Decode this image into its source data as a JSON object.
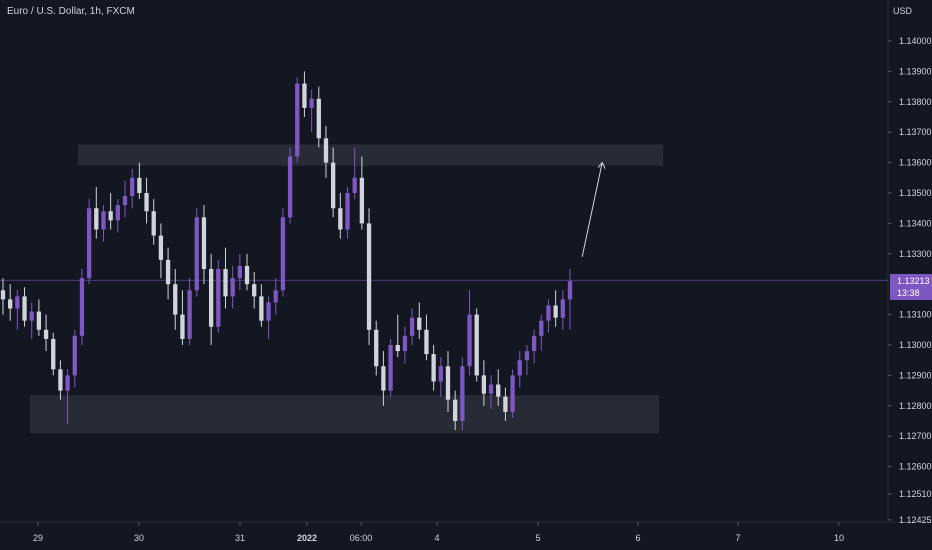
{
  "chart_data": {
    "type": "candlestick",
    "title": "Euro / U.S. Dollar, 1h, FXCM",
    "unit": "USD",
    "y_axis": {
      "ticks": [
        "1.14000",
        "1.13900",
        "1.13800",
        "1.13700",
        "1.13600",
        "1.13500",
        "1.13400",
        "1.13300",
        "1.13100",
        "1.13000",
        "1.12900",
        "1.12800",
        "1.12700",
        "1.12600",
        "1.12510",
        "1.12425"
      ],
      "ylim": [
        1.124,
        1.1415
      ]
    },
    "x_axis": {
      "ticks": [
        {
          "label": "29",
          "bold": false
        },
        {
          "label": "30",
          "bold": false
        },
        {
          "label": "31",
          "bold": false
        },
        {
          "label": "2022",
          "bold": true
        },
        {
          "label": "06:00",
          "bold": false
        },
        {
          "label": "4",
          "bold": false
        },
        {
          "label": "5",
          "bold": false
        },
        {
          "label": "6",
          "bold": false
        },
        {
          "label": "7",
          "bold": false
        },
        {
          "label": "10",
          "bold": false
        }
      ]
    },
    "current_price": {
      "value": "1.13213",
      "countdown": "13:38"
    },
    "colors": {
      "up": "#7e57c2",
      "down": "#d1d4dc",
      "background": "#131722",
      "zone": "#2a2e39",
      "price_line": "#7e57c2"
    },
    "zones": [
      {
        "name": "resistance",
        "from": 1.1359,
        "to": 1.1366
      },
      {
        "name": "support",
        "from": 1.1271,
        "to": 1.12835
      }
    ],
    "candles": [
      [
        1.1318,
        1.1322,
        1.131,
        1.1315
      ],
      [
        1.1315,
        1.132,
        1.1308,
        1.1312
      ],
      [
        1.1312,
        1.1318,
        1.1305,
        1.1316
      ],
      [
        1.1316,
        1.1319,
        1.1306,
        1.1308
      ],
      [
        1.1308,
        1.1314,
        1.1302,
        1.1311
      ],
      [
        1.1311,
        1.1315,
        1.1303,
        1.1305
      ],
      [
        1.1305,
        1.131,
        1.1298,
        1.1302
      ],
      [
        1.1302,
        1.1304,
        1.129,
        1.1292
      ],
      [
        1.1292,
        1.1295,
        1.1282,
        1.1285
      ],
      [
        1.1285,
        1.1292,
        1.1274,
        1.129
      ],
      [
        1.129,
        1.1305,
        1.1286,
        1.1303
      ],
      [
        1.1303,
        1.1325,
        1.13,
        1.1322
      ],
      [
        1.1322,
        1.1348,
        1.132,
        1.1345
      ],
      [
        1.1345,
        1.1352,
        1.1335,
        1.1338
      ],
      [
        1.1338,
        1.1346,
        1.1334,
        1.1344
      ],
      [
        1.1344,
        1.135,
        1.1338,
        1.1341
      ],
      [
        1.1341,
        1.1348,
        1.1337,
        1.1346
      ],
      [
        1.1346,
        1.1354,
        1.1342,
        1.1349
      ],
      [
        1.1349,
        1.1358,
        1.1345,
        1.1355
      ],
      [
        1.1355,
        1.136,
        1.1348,
        1.135
      ],
      [
        1.135,
        1.1355,
        1.134,
        1.1344
      ],
      [
        1.1344,
        1.1348,
        1.1333,
        1.1336
      ],
      [
        1.1336,
        1.134,
        1.1322,
        1.1328
      ],
      [
        1.1328,
        1.1332,
        1.1315,
        1.132
      ],
      [
        1.132,
        1.1325,
        1.1305,
        1.131
      ],
      [
        1.131,
        1.1318,
        1.13,
        1.1302
      ],
      [
        1.1302,
        1.1322,
        1.13,
        1.1318
      ],
      [
        1.1318,
        1.1345,
        1.1316,
        1.1342
      ],
      [
        1.1342,
        1.1346,
        1.132,
        1.1325
      ],
      [
        1.1325,
        1.133,
        1.13,
        1.1306
      ],
      [
        1.1306,
        1.1328,
        1.1304,
        1.1325
      ],
      [
        1.1325,
        1.1332,
        1.1312,
        1.1316
      ],
      [
        1.1316,
        1.1326,
        1.1312,
        1.1322
      ],
      [
        1.1322,
        1.133,
        1.1318,
        1.1326
      ],
      [
        1.1326,
        1.133,
        1.1318,
        1.132
      ],
      [
        1.132,
        1.1324,
        1.1312,
        1.1316
      ],
      [
        1.1316,
        1.132,
        1.1306,
        1.1308
      ],
      [
        1.1308,
        1.1316,
        1.1302,
        1.1314
      ],
      [
        1.1314,
        1.1322,
        1.131,
        1.1318
      ],
      [
        1.1318,
        1.1345,
        1.1316,
        1.1342
      ],
      [
        1.1342,
        1.1365,
        1.134,
        1.1362
      ],
      [
        1.1362,
        1.1388,
        1.136,
        1.1386
      ],
      [
        1.1386,
        1.139,
        1.1375,
        1.1378
      ],
      [
        1.1378,
        1.1384,
        1.137,
        1.1381
      ],
      [
        1.1381,
        1.1385,
        1.1365,
        1.1368
      ],
      [
        1.1368,
        1.1372,
        1.1355,
        1.136
      ],
      [
        1.136,
        1.1365,
        1.1342,
        1.1345
      ],
      [
        1.1345,
        1.135,
        1.1335,
        1.1338
      ],
      [
        1.1338,
        1.1352,
        1.1335,
        1.135
      ],
      [
        1.135,
        1.1365,
        1.1348,
        1.1355
      ],
      [
        1.1355,
        1.1362,
        1.1338,
        1.134
      ],
      [
        1.134,
        1.1345,
        1.13,
        1.1305
      ],
      [
        1.1305,
        1.1308,
        1.129,
        1.1293
      ],
      [
        1.1293,
        1.1298,
        1.128,
        1.1285
      ],
      [
        1.1285,
        1.1302,
        1.1283,
        1.13
      ],
      [
        1.13,
        1.131,
        1.1296,
        1.1298
      ],
      [
        1.1298,
        1.1306,
        1.1294,
        1.1303
      ],
      [
        1.1303,
        1.1312,
        1.13,
        1.1309
      ],
      [
        1.1309,
        1.1314,
        1.1302,
        1.1305
      ],
      [
        1.1305,
        1.131,
        1.1295,
        1.1297
      ],
      [
        1.1297,
        1.13,
        1.1285,
        1.1288
      ],
      [
        1.1288,
        1.1296,
        1.1283,
        1.1293
      ],
      [
        1.1293,
        1.1298,
        1.1278,
        1.1282
      ],
      [
        1.1282,
        1.1285,
        1.1272,
        1.1275
      ],
      [
        1.1275,
        1.1296,
        1.1272,
        1.1293
      ],
      [
        1.1293,
        1.1318,
        1.129,
        1.131
      ],
      [
        1.131,
        1.1312,
        1.1288,
        1.129
      ],
      [
        1.129,
        1.1295,
        1.128,
        1.1284
      ],
      [
        1.1284,
        1.129,
        1.1279,
        1.1287
      ],
      [
        1.1287,
        1.1292,
        1.128,
        1.1283
      ],
      [
        1.1283,
        1.1286,
        1.1275,
        1.1278
      ],
      [
        1.1278,
        1.1292,
        1.1276,
        1.129
      ],
      [
        1.129,
        1.1298,
        1.1286,
        1.1295
      ],
      [
        1.1295,
        1.13,
        1.129,
        1.1298
      ],
      [
        1.1298,
        1.1305,
        1.1294,
        1.1303
      ],
      [
        1.1303,
        1.131,
        1.1298,
        1.1308
      ],
      [
        1.1308,
        1.1315,
        1.1304,
        1.1313
      ],
      [
        1.1313,
        1.1318,
        1.1306,
        1.1309
      ],
      [
        1.1309,
        1.1318,
        1.1305,
        1.1315
      ],
      [
        1.1315,
        1.1325,
        1.1305,
        1.1321
      ]
    ],
    "projection_arrow": {
      "from": [
        80,
        1.1329
      ],
      "to": [
        84,
        1.136
      ]
    }
  }
}
